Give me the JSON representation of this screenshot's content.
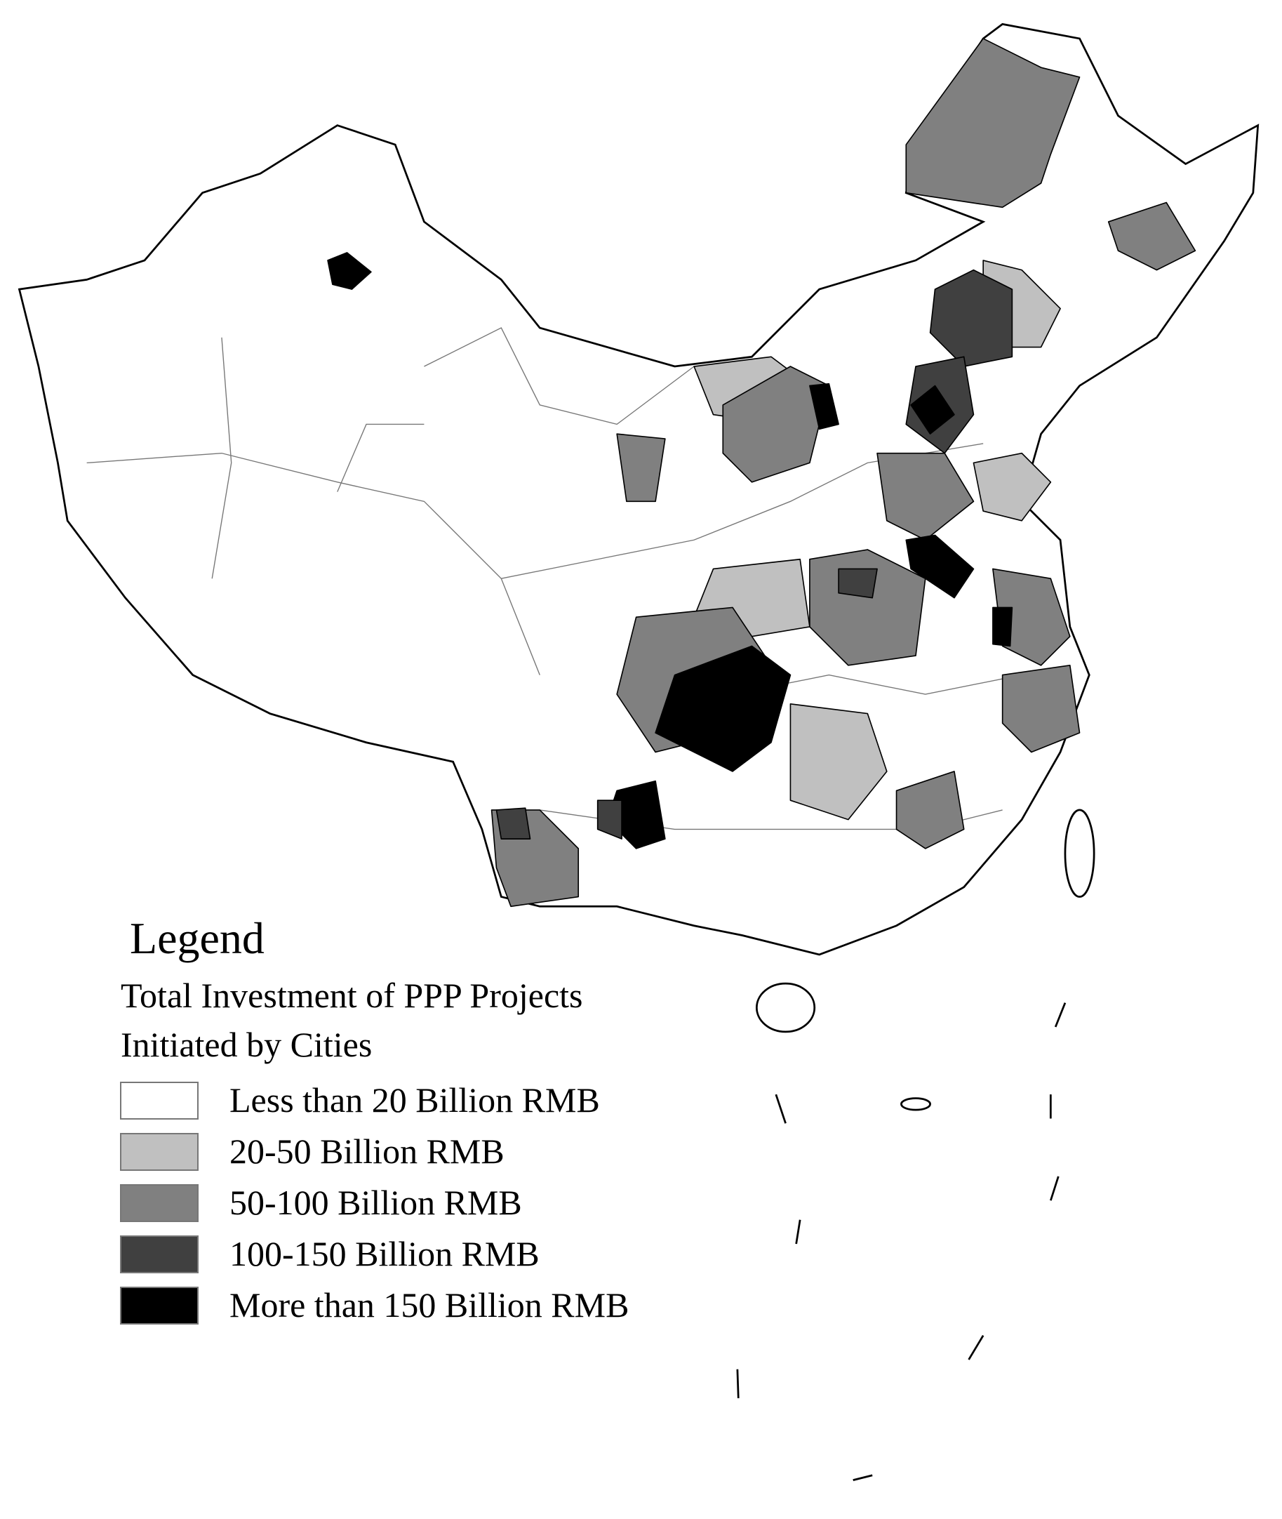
{
  "legend": {
    "title": "Legend",
    "subtitle_lines": [
      "Total Investment of PPP Projects",
      "Initiated by Cities"
    ],
    "items": [
      {
        "label": "Less than 20 Billion RMB",
        "color": "#ffffff"
      },
      {
        "label": "20-50 Billion RMB",
        "color": "#c0c0c0"
      },
      {
        "label": "50-100 Billion RMB",
        "color": "#808080"
      },
      {
        "label": "100-150 Billion RMB",
        "color": "#404040"
      },
      {
        "label": "More than 150 Billion RMB",
        "color": "#000000"
      }
    ]
  }
}
